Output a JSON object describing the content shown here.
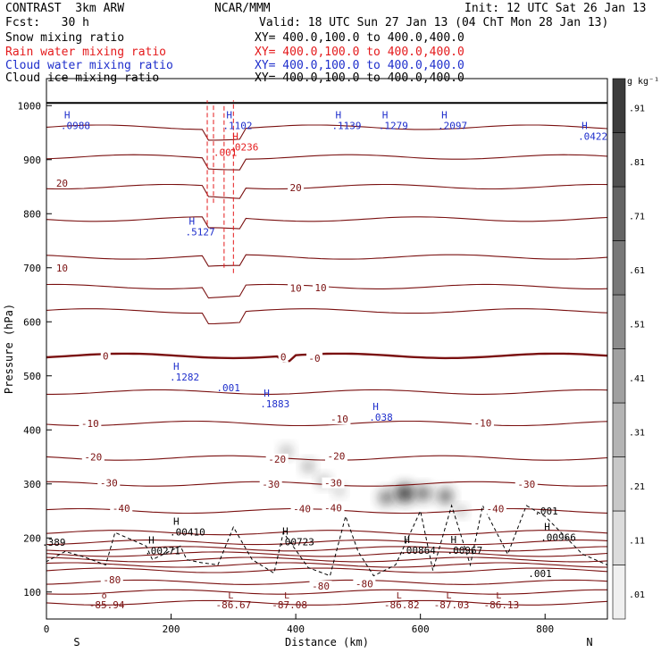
{
  "header": {
    "model": "CONTRAST  3km ARW",
    "org": "NCAR/MMM",
    "init": "Init: 12 UTC Sat 26 Jan 13",
    "fcst": "Fcst:   30 h",
    "valid": "Valid: 18 UTC Sun 27 Jan 13 (04 ChT Mon 28 Jan 13)",
    "fields": [
      {
        "name": "Snow mixing ratio",
        "xy": "XY= 400.0,100.0 to 400.0,400.0",
        "color": "#000000"
      },
      {
        "name": "Rain water mixing ratio",
        "xy": "XY= 400.0,100.0 to 400.0,400.0",
        "color": "#e41a1c"
      },
      {
        "name": "Cloud water mixing ratio",
        "xy": "XY= 400.0,100.0 to 400.0,400.0",
        "color": "#1f2fcc"
      },
      {
        "name": "Cloud ice mixing ratio",
        "xy": "XY= 400.0,100.0 to 400.0,400.0",
        "color": "#000000"
      }
    ]
  },
  "chart_data": {
    "type": "cross-section contour",
    "xlabel": "Distance (km)",
    "ylabel": "Pressure (hPa)",
    "xlim": [
      0,
      900
    ],
    "ylim": [
      1050,
      50
    ],
    "x_ticks": [
      0,
      200,
      400,
      600,
      800
    ],
    "y_ticks": [
      100,
      200,
      300,
      400,
      500,
      600,
      700,
      800,
      900,
      1000
    ],
    "end_labels": {
      "left": "S",
      "right": "N"
    },
    "colorbar": {
      "unit": "g kg⁻¹",
      "levels": [
        ".01",
        ".11",
        ".21",
        ".31",
        ".41",
        ".51",
        ".61",
        ".71",
        ".81",
        ".91"
      ]
    },
    "temperature_labels": [
      {
        "x": 105,
        "p": 123,
        "text": "-80"
      },
      {
        "x": 440,
        "p": 111,
        "text": "-80"
      },
      {
        "x": 510,
        "p": 115,
        "text": "-80"
      },
      {
        "x": 120,
        "p": 255,
        "text": "-40"
      },
      {
        "x": 410,
        "p": 254,
        "text": "-40"
      },
      {
        "x": 460,
        "p": 256,
        "text": "-40"
      },
      {
        "x": 720,
        "p": 254,
        "text": "-40"
      },
      {
        "x": 100,
        "p": 302,
        "text": "-30"
      },
      {
        "x": 360,
        "p": 300,
        "text": "-30"
      },
      {
        "x": 460,
        "p": 302,
        "text": "-30"
      },
      {
        "x": 770,
        "p": 300,
        "text": "-30"
      },
      {
        "x": 75,
        "p": 350,
        "text": "-20"
      },
      {
        "x": 370,
        "p": 346,
        "text": "-20"
      },
      {
        "x": 465,
        "p": 352,
        "text": "-20"
      },
      {
        "x": 70,
        "p": 412,
        "text": "-10"
      },
      {
        "x": 470,
        "p": 420,
        "text": "-10"
      },
      {
        "x": 700,
        "p": 413,
        "text": "-10"
      },
      {
        "x": 95,
        "p": 537,
        "text": "0"
      },
      {
        "x": 380,
        "p": 535,
        "text": "0"
      },
      {
        "x": 430,
        "p": 533,
        "text": "-0"
      },
      {
        "x": 25,
        "p": 700,
        "text": "10"
      },
      {
        "x": 400,
        "p": 662,
        "text": "10"
      },
      {
        "x": 440,
        "p": 663,
        "text": "10"
      },
      {
        "x": 25,
        "p": 857,
        "text": "20"
      },
      {
        "x": 400,
        "p": 848,
        "text": "20"
      }
    ],
    "minima": [
      {
        "x": 97,
        "p": 78,
        "text": "-85.94",
        "mark": "o"
      },
      {
        "x": 300,
        "p": 78,
        "text": "-86.67",
        "mark": "L"
      },
      {
        "x": 390,
        "p": 78,
        "text": "-87.08",
        "mark": "L"
      },
      {
        "x": 570,
        "p": 78,
        "text": "-86.82",
        "mark": "L"
      },
      {
        "x": 650,
        "p": 78,
        "text": "-87.03",
        "mark": "L"
      },
      {
        "x": 730,
        "p": 78,
        "text": "-86.13",
        "mark": "L"
      }
    ],
    "ice_maxima": [
      {
        "x": 10,
        "p": 189,
        "text": ".389",
        "mark": ""
      },
      {
        "x": 175,
        "p": 173,
        "text": ".00271",
        "mark": "H"
      },
      {
        "x": 215,
        "p": 208,
        "text": ".00410",
        "mark": "H"
      },
      {
        "x": 390,
        "p": 190,
        "text": ".00723",
        "mark": "H"
      },
      {
        "x": 585,
        "p": 174,
        "text": ".00864",
        "mark": "H"
      },
      {
        "x": 660,
        "p": 174,
        "text": ".00967",
        "mark": "H"
      },
      {
        "x": 810,
        "p": 198,
        "text": ".00966",
        "mark": "H"
      },
      {
        "x": 800,
        "p": 247,
        "text": ".001",
        "mark": ""
      },
      {
        "x": 790,
        "p": 131,
        "text": ".001",
        "mark": ""
      }
    ],
    "cloud_water_maxima": [
      {
        "x": 215,
        "p": 495,
        "text": ".1282",
        "mark": "H"
      },
      {
        "x": 290,
        "p": 475,
        "text": ".001",
        "mark": ""
      },
      {
        "x": 360,
        "p": 445,
        "text": ".1883",
        "mark": "H"
      },
      {
        "x": 535,
        "p": 420,
        "text": ".038",
        "mark": "H"
      },
      {
        "x": 240,
        "p": 763,
        "text": ".5127",
        "mark": "H"
      },
      {
        "x": 40,
        "p": 960,
        "text": ".0988",
        "mark": "H"
      },
      {
        "x": 300,
        "p": 960,
        "text": ".1102",
        "mark": "H"
      },
      {
        "x": 475,
        "p": 960,
        "text": ".1139",
        "mark": "H"
      },
      {
        "x": 550,
        "p": 960,
        "text": ".1279",
        "mark": "H"
      },
      {
        "x": 645,
        "p": 960,
        "text": ".2097",
        "mark": "H"
      },
      {
        "x": 870,
        "p": 940,
        "text": ".0422",
        "mark": "H"
      }
    ],
    "rain_maxima": [
      {
        "x": 310,
        "p": 920,
        "text": ".0236",
        "mark": "H"
      },
      {
        "x": 285,
        "p": 910,
        "text": ".001",
        "mark": ""
      }
    ]
  }
}
